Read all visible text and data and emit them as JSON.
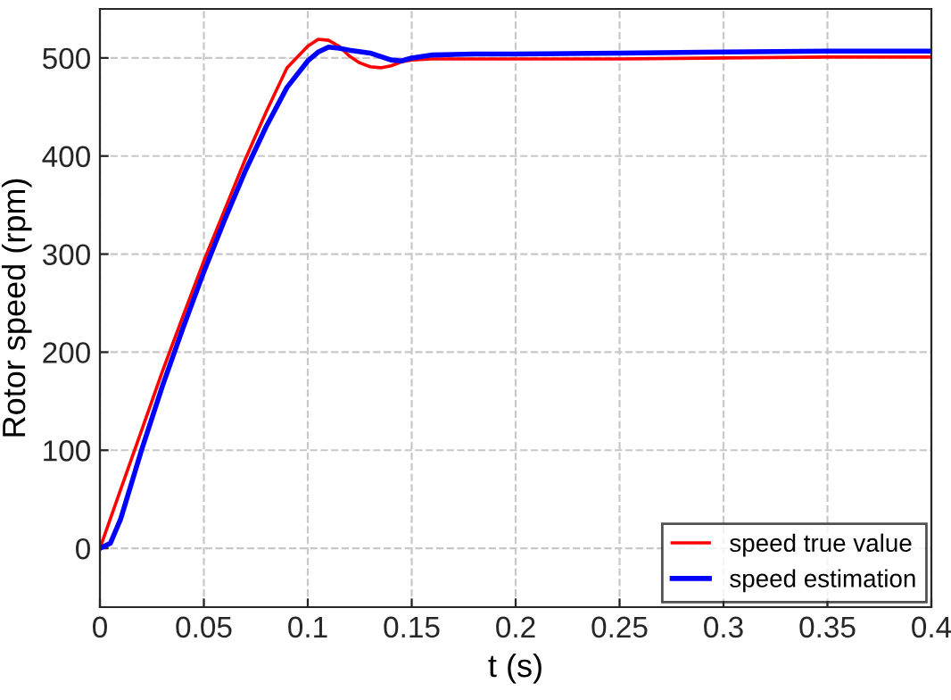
{
  "chart_data": {
    "type": "line",
    "xlabel": "t (s)",
    "ylabel": "Rotor speed (rpm)",
    "xlim": [
      0,
      0.4
    ],
    "ylim": [
      -60,
      550
    ],
    "xticks": [
      0,
      0.05,
      0.1,
      0.15,
      0.2,
      0.25,
      0.3,
      0.35,
      0.4
    ],
    "yticks": [
      0,
      100,
      200,
      300,
      400,
      500
    ],
    "grid": true,
    "legend": "bottom right",
    "line_style": "solid",
    "marker": "none",
    "series": [
      {
        "name": "speed true value",
        "color": "#ff0000",
        "x": [
          0,
          0.01,
          0.02,
          0.03,
          0.04,
          0.05,
          0.06,
          0.07,
          0.08,
          0.09,
          0.1,
          0.105,
          0.11,
          0.115,
          0.12,
          0.125,
          0.13,
          0.135,
          0.14,
          0.145,
          0.15,
          0.16,
          0.18,
          0.2,
          0.25,
          0.3,
          0.35,
          0.4
        ],
        "values": [
          0,
          60,
          120,
          180,
          237,
          293,
          345,
          397,
          445,
          490,
          512,
          519,
          518,
          512,
          502,
          495,
          491,
          490,
          492,
          496,
          498,
          499,
          499,
          499,
          499,
          500,
          501,
          501
        ]
      },
      {
        "name": "speed estimation",
        "color": "#0000ff",
        "x": [
          0,
          0.005,
          0.01,
          0.015,
          0.02,
          0.03,
          0.04,
          0.05,
          0.06,
          0.07,
          0.08,
          0.09,
          0.1,
          0.105,
          0.11,
          0.115,
          0.12,
          0.13,
          0.14,
          0.145,
          0.15,
          0.16,
          0.18,
          0.2,
          0.25,
          0.3,
          0.35,
          0.4
        ],
        "values": [
          0,
          5,
          30,
          65,
          100,
          165,
          225,
          282,
          335,
          385,
          430,
          470,
          497,
          506,
          511,
          510,
          508,
          505,
          498,
          497,
          500,
          503,
          504,
          504,
          505,
          506,
          507,
          507
        ]
      }
    ]
  }
}
